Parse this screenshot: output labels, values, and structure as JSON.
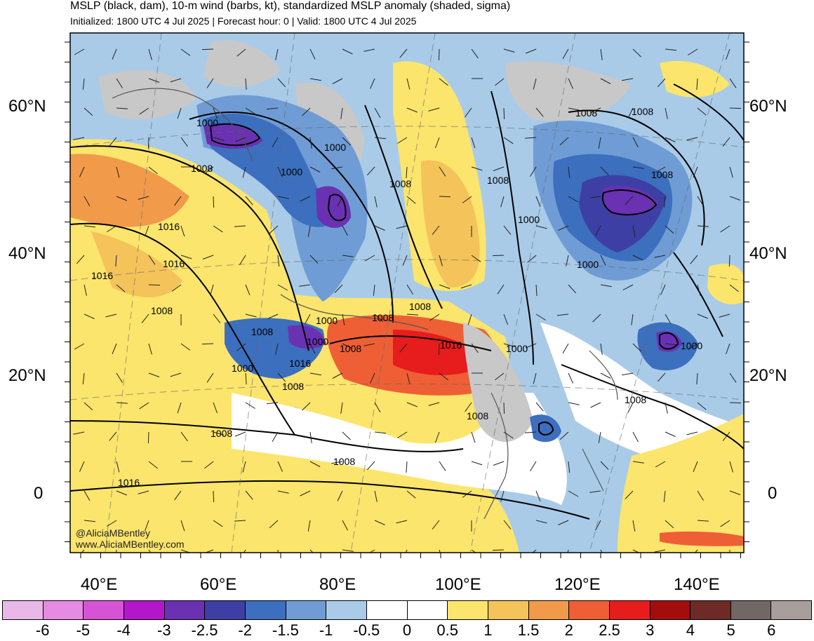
{
  "title": "MSLP (black, dam), 10-m wind (barbs, kt), standardized MSLP anomaly (shaded, sigma)",
  "subtitle": "Initialized: 1800 UTC 4 Jul 2025 | Forecast hour: 0 | Valid: 1800 UTC 4 Jul 2025",
  "lat_labels": [
    "60°N",
    "40°N",
    "20°N",
    "0"
  ],
  "lon_labels": [
    "40°E",
    "60°E",
    "80°E",
    "100°E",
    "120°E",
    "140°E"
  ],
  "credit": [
    "@AliciaMBentley",
    "www.AliciaMBentley.com"
  ],
  "isobar_labels": [
    "1000",
    "1000",
    "1000",
    "1008",
    "1008",
    "1008",
    "1016",
    "1016",
    "1016",
    "1008",
    "1008",
    "1008",
    "1008",
    "1000",
    "1000",
    "1000",
    "1008",
    "1016",
    "1016",
    "1008",
    "1008",
    "1000",
    "1000",
    "1008",
    "1000",
    "1008",
    "1008",
    "1000",
    "1008",
    "1008",
    "1016",
    "1008"
  ],
  "colorbar": {
    "labels": [
      "-6",
      "-5",
      "-4",
      "-3",
      "-2.5",
      "-2",
      "-1.5",
      "-1",
      "-0.5",
      "0",
      "0.5",
      "1",
      "1.5",
      "2",
      "2.5",
      "3",
      "4",
      "5",
      "6"
    ],
    "colors": [
      "#e9b8e8",
      "#e58be3",
      "#d653d6",
      "#b317c9",
      "#6a31b2",
      "#3d3fa5",
      "#3c6fbe",
      "#6f9cd4",
      "#a9cbe8",
      "#ffffff",
      "#ffffff",
      "#fbe56c",
      "#f4c35a",
      "#f19a4a",
      "#ee5f35",
      "#e71c1c",
      "#a50d0d",
      "#6e2a27",
      "#716866",
      "#a89e9c"
    ]
  }
}
